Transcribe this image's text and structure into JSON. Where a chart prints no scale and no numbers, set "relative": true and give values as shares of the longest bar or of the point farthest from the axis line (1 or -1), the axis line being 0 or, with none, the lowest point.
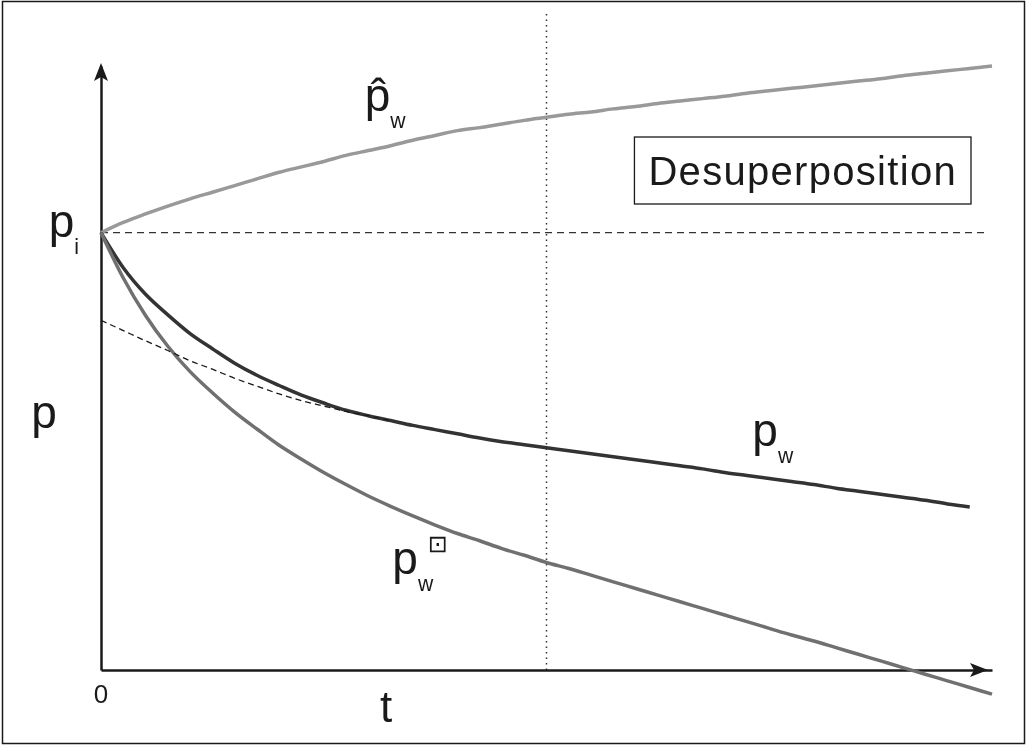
{
  "chart_data": {
    "type": "line",
    "relative": true,
    "xlabel": "t",
    "ylabel": "p",
    "categories": [
      null,
      null,
      null,
      null,
      null,
      null,
      null,
      null,
      null,
      null,
      null,
      null,
      null,
      null,
      null,
      null,
      null,
      null,
      null,
      null,
      null,
      null,
      null,
      null,
      null,
      null,
      null,
      null,
      null,
      null,
      null,
      null,
      null,
      null,
      null,
      null,
      null,
      null,
      null,
      null,
      null
    ],
    "series": [
      {
        "name": "p̂$_{w}$",
        "color": "#999999",
        "values": [
          0.724,
          0.741,
          0.755,
          0.768,
          0.78,
          0.791,
          0.802,
          0.813,
          0.824,
          0.833,
          0.842,
          0.852,
          0.86,
          0.868,
          0.877,
          0.885,
          0.893,
          0.898,
          0.904,
          0.91,
          0.915,
          0.92,
          0.924,
          0.929,
          0.933,
          0.938,
          0.942,
          0.946,
          0.95,
          0.955,
          0.959,
          0.963,
          0.967,
          0.971,
          0.975,
          0.979,
          0.984,
          0.988,
          0.992,
          0.996,
          1
        ]
      },
      {
        "name": "p$_{w}$",
        "color": "#333333",
        "values": [
          0.724,
          0.666,
          0.622,
          0.588,
          0.557,
          0.532,
          0.508,
          0.488,
          0.471,
          0.455,
          0.442,
          0.43,
          0.421,
          0.413,
          0.405,
          0.398,
          0.391,
          0.384,
          0.378,
          0.373,
          0.368,
          0.363,
          0.358,
          0.353,
          0.348,
          0.343,
          0.338,
          0.333,
          0.327,
          0.322,
          0.317,
          0.312,
          0.307,
          0.301,
          0.296,
          0.291,
          0.286,
          0.281,
          0.275,
          0.27,
          null
        ]
      },
      {
        "name": "p$_{w}$$^{⊡}$",
        "color": "#707070",
        "values": [
          0.724,
          0.649,
          0.587,
          0.536,
          0.494,
          0.459,
          0.427,
          0.399,
          0.372,
          0.349,
          0.327,
          0.307,
          0.288,
          0.271,
          0.255,
          0.24,
          0.226,
          0.214,
          0.201,
          0.19,
          0.178,
          0.168,
          0.157,
          0.146,
          0.135,
          0.124,
          0.113,
          0.102,
          0.091,
          0.08,
          0.069,
          0.058,
          0.048,
          0.037,
          0.026,
          0.015,
          0.004,
          -0.007,
          -0.018,
          -0.029,
          -0.04
        ]
      },
      {
        "color": "#1a1a1a",
        "line_style": "dashed",
        "values": [
          0.579,
          0.562,
          0.545,
          0.529,
          0.512,
          0.498,
          0.483,
          0.47,
          0.457,
          0.446,
          0.437,
          0.428,
          0.421,
          0.413,
          null,
          null,
          null,
          null,
          null,
          null,
          null,
          null,
          null,
          null,
          null,
          null,
          null,
          null,
          null,
          null,
          null,
          null,
          null,
          null,
          null,
          null,
          null,
          null,
          null,
          null,
          null
        ]
      }
    ],
    "ref_lines": [
      {
        "axis": "y",
        "value": 0.724,
        "label": "p$_{i}$",
        "line_style": "dashed",
        "color": "#333333"
      }
    ],
    "annotations": [
      "Desuperposition",
      "0"
    ]
  }
}
